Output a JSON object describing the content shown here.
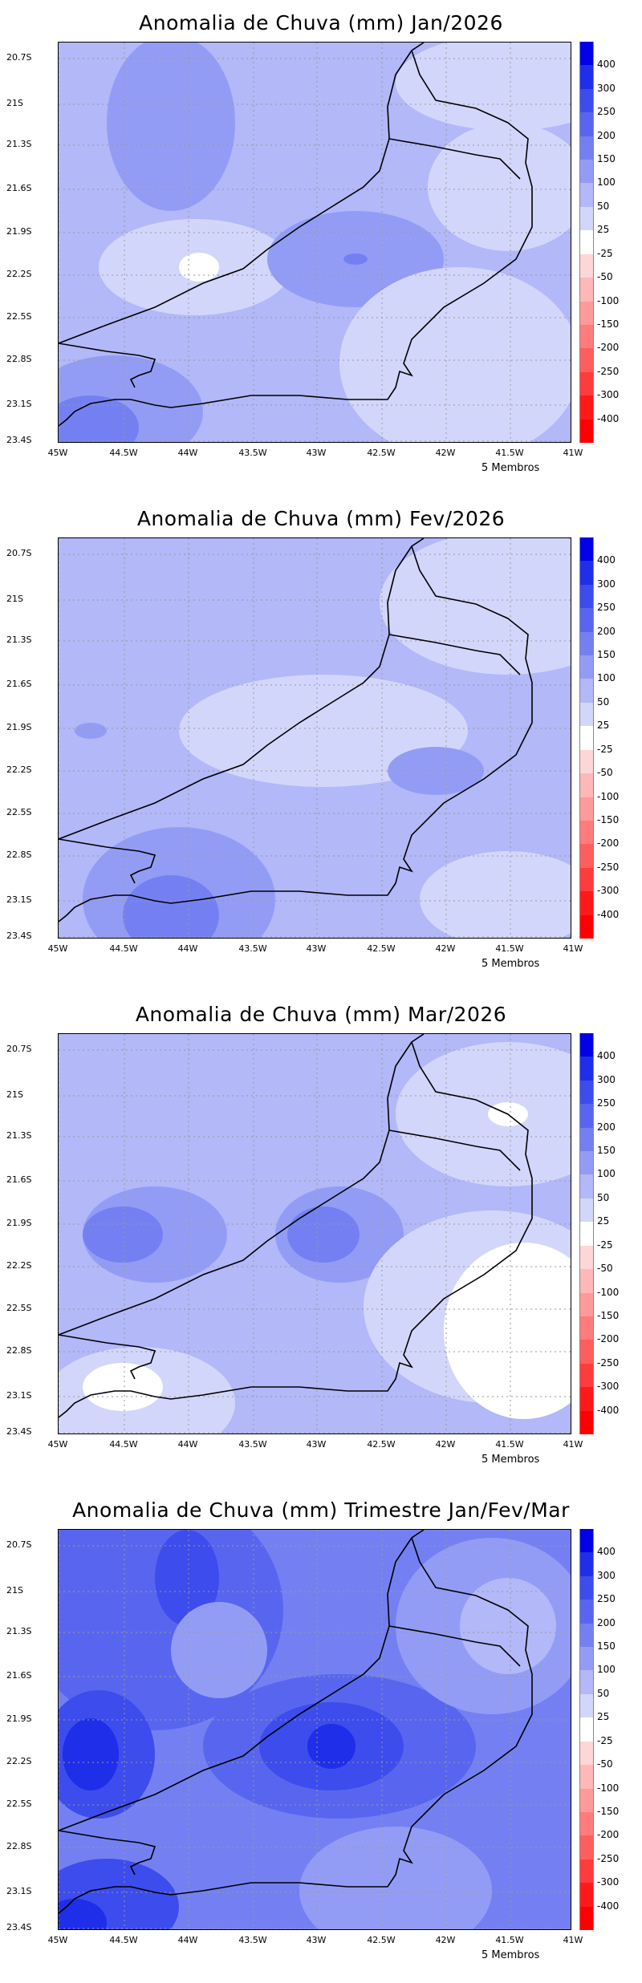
{
  "panels": [
    {
      "title": "Anomalia de Chuva (mm) Jan/2026",
      "members": "5 Membros"
    },
    {
      "title": "Anomalia de Chuva (mm) Fev/2026",
      "members": "5 Membros"
    },
    {
      "title": "Anomalia de Chuva (mm) Mar/2026",
      "members": "5 Membros"
    },
    {
      "title": "Anomalia de Chuva (mm) Trimestre Jan/Fev/Mar",
      "members": "5 Membros"
    }
  ],
  "y_ticks": [
    "20.7S",
    "21S",
    "21.3S",
    "21.6S",
    "21.9S",
    "22.2S",
    "22.5S",
    "22.8S",
    "23.1S",
    "23.4S"
  ],
  "x_ticks": [
    "45W",
    "44.5W",
    "44W",
    "43.5W",
    "43W",
    "42.5W",
    "42W",
    "41.5W",
    "41W"
  ],
  "colorbar": {
    "labels": [
      "400",
      "300",
      "250",
      "200",
      "150",
      "100",
      "50",
      "25",
      "-25",
      "-50",
      "-100",
      "-150",
      "-200",
      "-250",
      "-300",
      "-400"
    ],
    "colors": [
      "#0000e6",
      "#1f2ee8",
      "#3d4cec",
      "#5866ef",
      "#7480f2",
      "#939cf5",
      "#b2b8f8",
      "#d3d6fb",
      "#ffffff",
      "#ffd6d6",
      "#ffb8b8",
      "#ff9a9a",
      "#ff7c7c",
      "#ff5e5e",
      "#ff3c3c",
      "#ff1a1a",
      "#ff0000"
    ]
  }
}
